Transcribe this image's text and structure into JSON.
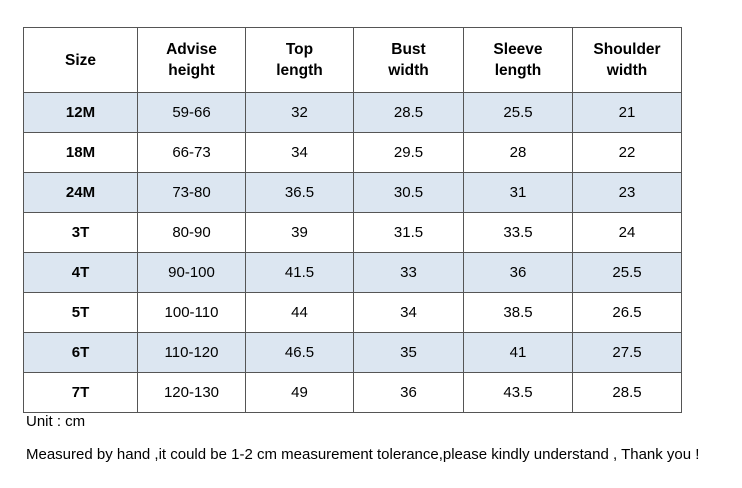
{
  "table": {
    "headers": [
      "Size",
      "Advise\nheight",
      "Top\nlength",
      "Bust\nwidth",
      "Sleeve\nlength",
      "Shoulder\nwidth"
    ],
    "rows": [
      [
        "12M",
        "59-66",
        "32",
        "28.5",
        "25.5",
        "21"
      ],
      [
        "18M",
        "66-73",
        "34",
        "29.5",
        "28",
        "22"
      ],
      [
        "24M",
        "73-80",
        "36.5",
        "30.5",
        "31",
        "23"
      ],
      [
        "3T",
        "80-90",
        "39",
        "31.5",
        "33.5",
        "24"
      ],
      [
        "4T",
        "90-100",
        "41.5",
        "33",
        "36",
        "25.5"
      ],
      [
        "5T",
        "100-110",
        "44",
        "34",
        "38.5",
        "26.5"
      ],
      [
        "6T",
        "110-120",
        "46.5",
        "35",
        "41",
        "27.5"
      ],
      [
        "7T",
        "120-130",
        "49",
        "36",
        "43.5",
        "28.5"
      ]
    ]
  },
  "notes": {
    "unit": "Unit : cm",
    "tolerance": "Measured by hand ,it could be 1-2 cm measurement tolerance,please kindly understand , Thank you !"
  },
  "colors": {
    "shaded_row": "#dce6f1",
    "border": "#555555"
  }
}
